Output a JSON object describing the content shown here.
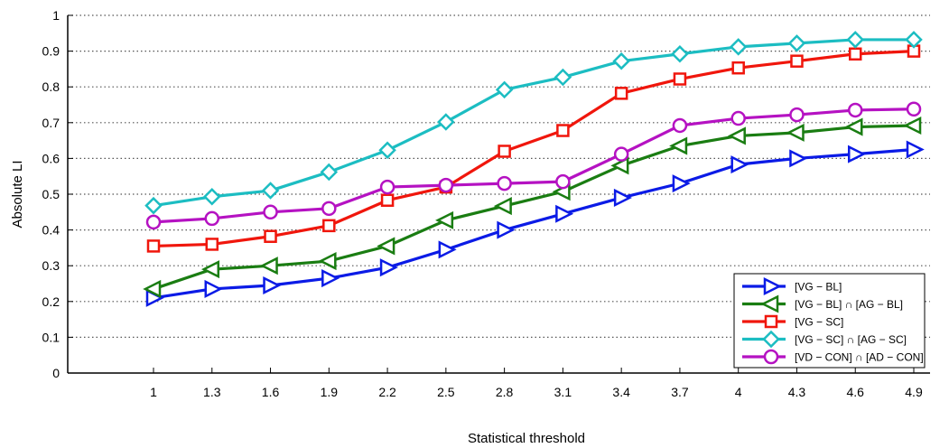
{
  "chart_data": {
    "type": "line",
    "title": "",
    "xlabel": "Statistical threshold",
    "ylabel": "Absolute LI",
    "ylim": [
      0,
      1
    ],
    "yticks": [
      "0",
      "0.1",
      "0.2",
      "0.3",
      "0.4",
      "0.5",
      "0.6",
      "0.7",
      "0.8",
      "0.9",
      "1"
    ],
    "categories": [
      "1",
      "1.3",
      "1.6",
      "1.9",
      "2.2",
      "2.5",
      "2.8",
      "3.1",
      "3.4",
      "3.7",
      "4",
      "4.3",
      "4.6",
      "4.9"
    ],
    "grid": "horizontal dotted",
    "legend_position": "bottom-right",
    "series": [
      {
        "name": "[VG − BL]",
        "color": "#0b1be6",
        "marker": "triangle-right",
        "values": [
          0.21,
          0.235,
          0.245,
          0.265,
          0.295,
          0.345,
          0.4,
          0.445,
          0.49,
          0.53,
          0.583,
          0.6,
          0.612,
          0.625
        ]
      },
      {
        "name": "[VG − BL] ∩ [AG − BL]",
        "color": "#1a7d12",
        "marker": "triangle-left",
        "values": [
          0.235,
          0.29,
          0.3,
          0.313,
          0.355,
          0.427,
          0.467,
          0.507,
          0.58,
          0.635,
          0.663,
          0.672,
          0.688,
          0.692
        ]
      },
      {
        "name": "[VG − SC]",
        "color": "#f0160c",
        "marker": "square",
        "values": [
          0.355,
          0.36,
          0.382,
          0.412,
          0.483,
          0.52,
          0.62,
          0.678,
          0.782,
          0.822,
          0.853,
          0.872,
          0.892,
          0.9
        ]
      },
      {
        "name": "[VG − SC] ∩ [AG − SC]",
        "color": "#1cbdc2",
        "marker": "diamond",
        "values": [
          0.468,
          0.493,
          0.51,
          0.562,
          0.623,
          0.702,
          0.792,
          0.827,
          0.872,
          0.892,
          0.912,
          0.922,
          0.932,
          0.932
        ]
      },
      {
        "name": "[VD − CON] ∩ [AD − CON]",
        "color": "#b512c2",
        "marker": "circle",
        "values": [
          0.422,
          0.432,
          0.45,
          0.46,
          0.52,
          0.525,
          0.53,
          0.535,
          0.612,
          0.692,
          0.712,
          0.722,
          0.735,
          0.738
        ]
      }
    ]
  }
}
